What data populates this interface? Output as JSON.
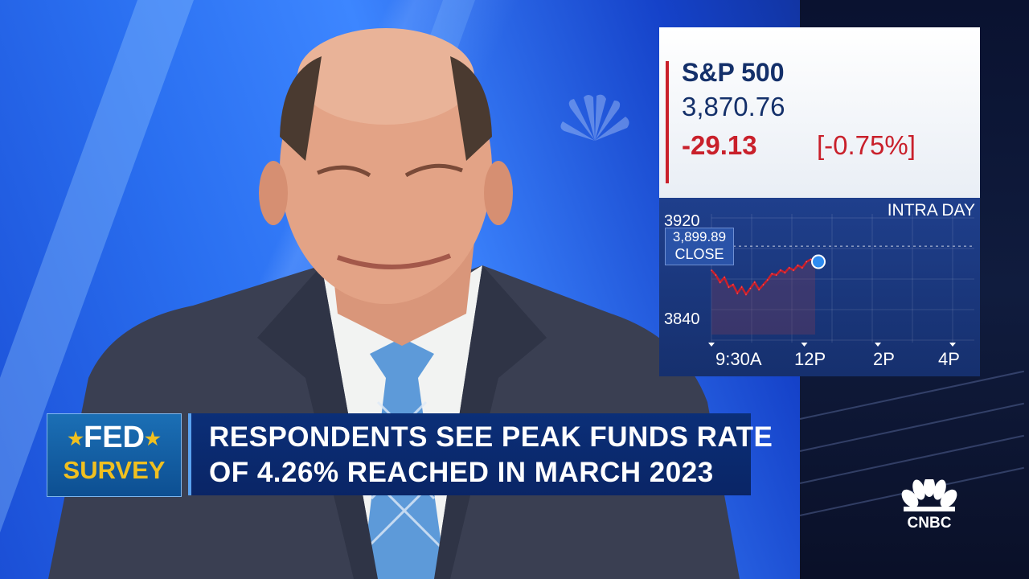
{
  "ticker": {
    "name": "S&P 500",
    "price": "3,870.76",
    "change": "-29.13",
    "change_pct": "[-0.75%]"
  },
  "intraday_chart": {
    "title": "INTRA DAY",
    "y_top_label": "3920",
    "y_bottom_label": "3840",
    "close_value": "3,899.89",
    "close_label": "CLOSE",
    "x_labels": [
      "9:30A",
      "12P",
      "2P",
      "4P"
    ]
  },
  "chart_data": {
    "type": "line",
    "title": "INTRA DAY",
    "ylim": [
      3840,
      3920
    ],
    "reference_line": 3899.89,
    "series": [
      {
        "values": [
          3880,
          3876,
          3870,
          3874,
          3866,
          3868,
          3861,
          3866,
          3860,
          3865,
          3870,
          3864,
          3868,
          3872,
          3877,
          3876,
          3880,
          3878,
          3882,
          3880,
          3884,
          3882,
          3887,
          3889,
          3887
        ]
      }
    ]
  },
  "lower_third": {
    "tag_line1": "FED",
    "tag_line2": "SURVEY",
    "headline_line1": "RESPONDENTS SEE PEAK FUNDS RATE",
    "headline_line2": "OF 4.26% REACHED IN MARCH 2023"
  },
  "network_logo": "CNBC",
  "colors": {
    "negative": "#c9202b",
    "ticker_text": "#14306a",
    "survey_gold": "#f0c020"
  }
}
